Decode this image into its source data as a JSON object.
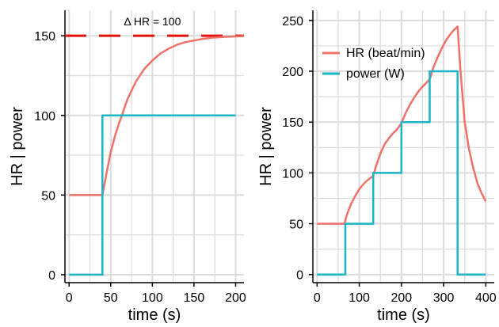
{
  "colors": {
    "hr": "#f07167",
    "power": "#1ab6c4",
    "target": "#e3120b",
    "grid": "#dcdcdc",
    "axis": "#000000"
  },
  "chart_data": [
    {
      "type": "line",
      "xlabel": "time (s)",
      "ylabel": "HR | power",
      "xlim": [
        -5,
        210
      ],
      "ylim": [
        -5,
        166
      ],
      "xticks": [
        0,
        50,
        100,
        150,
        200
      ],
      "yticks": [
        0,
        50,
        100,
        150
      ],
      "grid": true,
      "annotation": {
        "text": "Δ HR = 100",
        "x": 100,
        "y": 159
      },
      "reference_line": {
        "y": 150,
        "style": "dashed"
      },
      "series": [
        {
          "key": "hr",
          "x": [
            0,
            40,
            45,
            50,
            55,
            60,
            70,
            80,
            90,
            100,
            110,
            120,
            130,
            140,
            150,
            160,
            170,
            180,
            190,
            200,
            210
          ],
          "values": [
            50,
            50,
            64,
            77,
            87,
            95,
            110,
            121,
            129,
            134.5,
            139,
            142,
            144.5,
            146,
            147,
            148,
            148.7,
            149.1,
            149.4,
            149.6,
            149.8
          ]
        },
        {
          "key": "power",
          "x": [
            0,
            40,
            40,
            200
          ],
          "values": [
            0,
            0,
            100,
            100
          ]
        }
      ]
    },
    {
      "type": "line",
      "xlabel": "time (s)",
      "ylabel": "HR | power",
      "xlim": [
        -10,
        420
      ],
      "ylim": [
        -8,
        260
      ],
      "xticks": [
        0,
        100,
        200,
        300,
        400
      ],
      "yticks": [
        0,
        50,
        100,
        150,
        200,
        250
      ],
      "grid": true,
      "legend_position": "top-left",
      "series": [
        {
          "key": "hr",
          "name": "HR (beat/min)",
          "x": [
            0,
            65,
            70,
            80,
            90,
            100,
            110,
            120,
            133,
            140,
            150,
            160,
            170,
            180,
            190,
            200,
            210,
            220,
            230,
            240,
            250,
            260,
            267,
            275,
            285,
            295,
            305,
            315,
            325,
            333,
            340,
            350,
            360,
            370,
            380,
            390,
            400
          ],
          "values": [
            50,
            50,
            58,
            69,
            77,
            84,
            89,
            93,
            97,
            107,
            119,
            128,
            134,
            139,
            143,
            149,
            159,
            167,
            174,
            180,
            185,
            189,
            192,
            203,
            213,
            222,
            230,
            236,
            241,
            244,
            200,
            150,
            124,
            105,
            90,
            80,
            72
          ]
        },
        {
          "key": "power",
          "name": "power (W)",
          "x": [
            0,
            67,
            67,
            133,
            133,
            200,
            200,
            267,
            267,
            333,
            333,
            400
          ],
          "values": [
            0,
            0,
            50,
            50,
            100,
            100,
            150,
            150,
            200,
            200,
            0,
            0
          ]
        }
      ]
    }
  ]
}
